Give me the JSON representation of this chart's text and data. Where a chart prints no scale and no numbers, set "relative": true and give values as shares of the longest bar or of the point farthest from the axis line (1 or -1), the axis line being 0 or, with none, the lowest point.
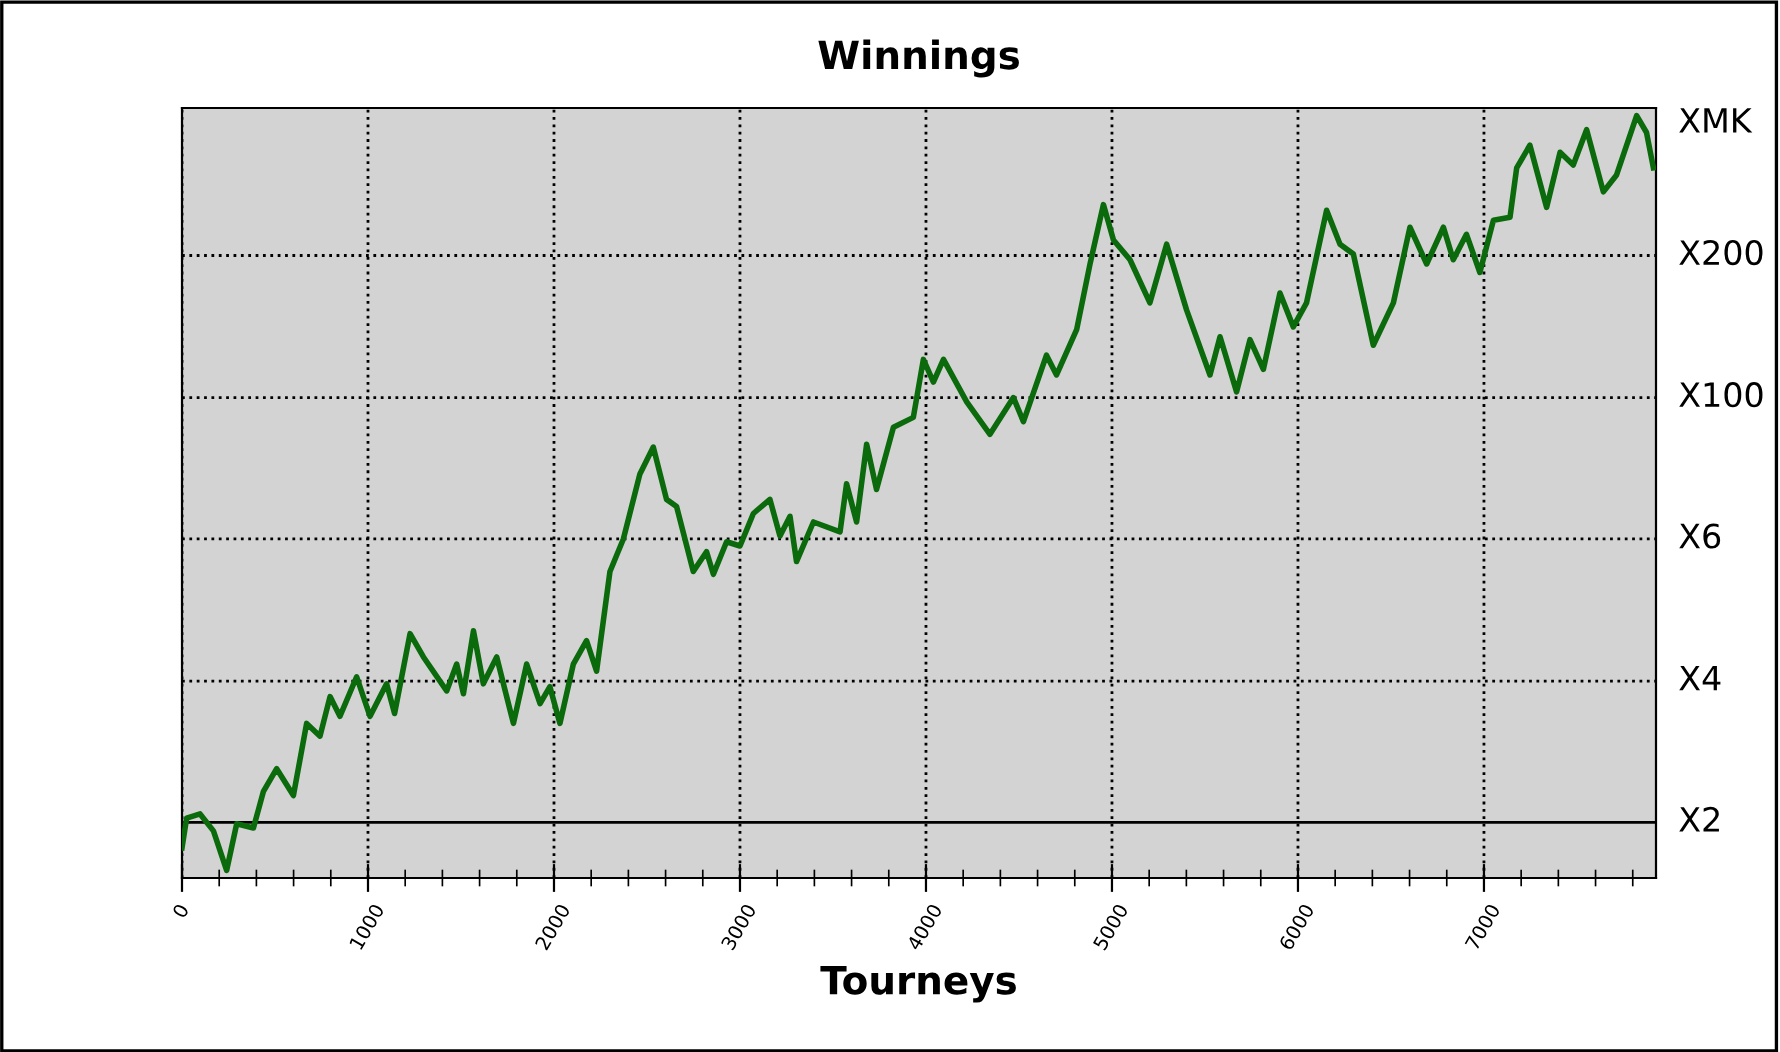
{
  "chart_data": {
    "type": "line",
    "title": "Winnings",
    "xlabel": "Tourneys",
    "x": [
      0,
      25,
      97,
      169,
      240,
      294,
      384,
      438,
      509,
      599,
      670,
      742,
      796,
      849,
      939,
      1011,
      1100,
      1143,
      1226,
      1298,
      1423,
      1477,
      1513,
      1567,
      1620,
      1692,
      1782,
      1853,
      1925,
      1978,
      2032,
      2104,
      2175,
      2229,
      2301,
      2373,
      2462,
      2534,
      2605,
      2659,
      2749,
      2820,
      2857,
      2928,
      3000,
      3072,
      3161,
      3215,
      3269,
      3304,
      3395,
      3538,
      3573,
      3627,
      3681,
      3734,
      3825,
      3932,
      3986,
      4040,
      4094,
      4219,
      4344,
      4470,
      4524,
      4648,
      4702,
      4810,
      4882,
      4954,
      5008,
      5097,
      5204,
      5294,
      5401,
      5527,
      5581,
      5670,
      5742,
      5814,
      5903,
      5975,
      6046,
      6154,
      6226,
      6298,
      6405,
      6513,
      6602,
      6692,
      6782,
      6835,
      6906,
      6978,
      7051,
      7140,
      7176,
      7247,
      7337,
      7409,
      7480,
      7552,
      7642,
      7713,
      7821,
      7874,
      7911
    ],
    "series": [
      {
        "color": "#0b6a0b",
        "values": [
          -0.036,
          0.006,
          0.012,
          -0.012,
          -0.068,
          -0.002,
          -0.008,
          0.044,
          0.076,
          0.038,
          0.14,
          0.122,
          0.178,
          0.15,
          0.206,
          0.15,
          0.196,
          0.154,
          0.267,
          0.234,
          0.186,
          0.224,
          0.182,
          0.271,
          0.196,
          0.234,
          0.14,
          0.224,
          0.168,
          0.192,
          0.14,
          0.224,
          0.257,
          0.214,
          0.355,
          0.401,
          0.493,
          0.531,
          0.457,
          0.447,
          0.355,
          0.383,
          0.351,
          0.397,
          0.391,
          0.437,
          0.457,
          0.405,
          0.433,
          0.369,
          0.425,
          0.411,
          0.479,
          0.425,
          0.535,
          0.471,
          0.559,
          0.573,
          0.655,
          0.623,
          0.655,
          0.595,
          0.549,
          0.601,
          0.567,
          0.661,
          0.633,
          0.697,
          0.79,
          0.874,
          0.824,
          0.796,
          0.735,
          0.818,
          0.725,
          0.633,
          0.687,
          0.609,
          0.683,
          0.641,
          0.749,
          0.701,
          0.735,
          0.866,
          0.818,
          0.804,
          0.675,
          0.735,
          0.842,
          0.79,
          0.842,
          0.796,
          0.832,
          0.778,
          0.852,
          0.856,
          0.926,
          0.958,
          0.87,
          0.948,
          0.93,
          0.98,
          0.892,
          0.916,
          1,
          0.976,
          0.926
        ]
      }
    ],
    "relative": true,
    "xlim": [
      0,
      7925
    ],
    "xticks": [
      0,
      1000,
      2000,
      3000,
      4000,
      5000,
      6000,
      7000
    ],
    "ref_lines": [
      {
        "axis": "y",
        "value": 0,
        "label": "X2",
        "color": "#000000",
        "line_style": "solid"
      },
      {
        "axis": "y",
        "value": 0.2,
        "label": "X4",
        "color": "#000000",
        "line_style": "dotted"
      },
      {
        "axis": "y",
        "value": 0.401,
        "label": "X6",
        "color": "#000000",
        "line_style": "dotted"
      },
      {
        "axis": "y",
        "value": 0.601,
        "label": "X100",
        "color": "#000000",
        "line_style": "dotted"
      },
      {
        "axis": "y",
        "value": 0.802,
        "label": "X200",
        "color": "#000000",
        "line_style": "dotted"
      }
    ],
    "annotations": [
      "XMK"
    ],
    "grid": "x",
    "line_style": "solid",
    "marker": "none",
    "legend": false
  }
}
